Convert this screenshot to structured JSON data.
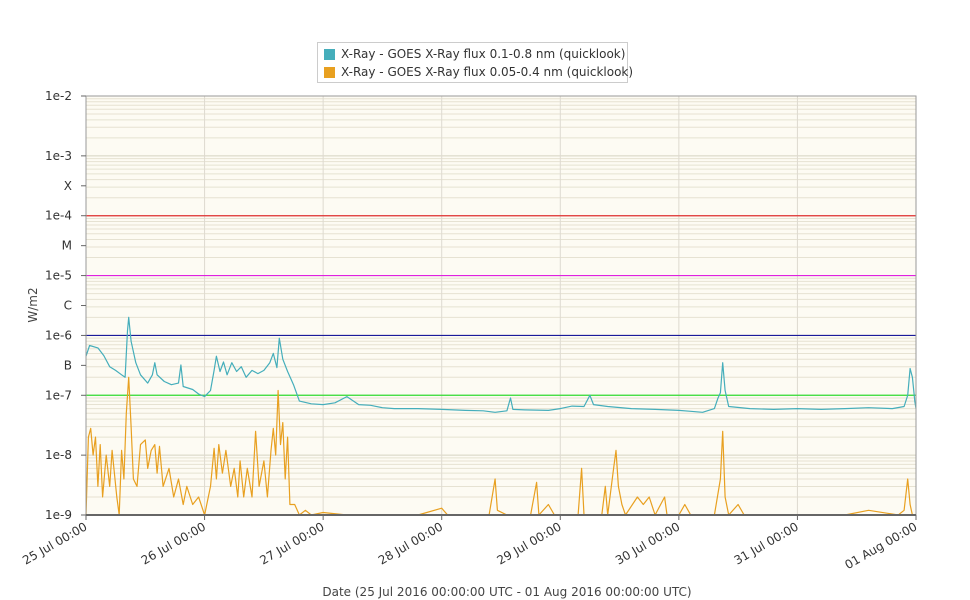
{
  "chart_data": {
    "type": "line",
    "title": "",
    "ylabel": "W/m2",
    "xlabel": "Date (25 Jul 2016 00:00:00 UTC - 01 Aug 2016 00:00:00 UTC)",
    "y_scale": "log",
    "ylim": [
      1e-09,
      0.01
    ],
    "xlim": [
      "2016-07-25T00:00",
      "2016-08-01T00:00"
    ],
    "grid": true,
    "legend_position": "top-center",
    "x_tick_labels": [
      "25 Jul 00:00",
      "26 Jul 00:00",
      "27 Jul 00:00",
      "28 Jul 00:00",
      "29 Jul 00:00",
      "30 Jul 00:00",
      "31 Jul 00:00",
      "01 Aug 00:00"
    ],
    "y_tick_labels": [
      {
        "text": "1e-2",
        "value": 0.01
      },
      {
        "text": "1e-3",
        "value": 0.001
      },
      {
        "text": "X",
        "value": 0.000316
      },
      {
        "text": "1e-4",
        "value": 0.0001
      },
      {
        "text": "M",
        "value": 3.16e-05
      },
      {
        "text": "1e-5",
        "value": 1e-05
      },
      {
        "text": "C",
        "value": 3.16e-06
      },
      {
        "text": "1e-6",
        "value": 1e-06
      },
      {
        "text": "B",
        "value": 3.16e-07
      },
      {
        "text": "1e-7",
        "value": 1e-07
      },
      {
        "text": "1e-8",
        "value": 1e-08
      },
      {
        "text": "1e-9",
        "value": 1e-09
      }
    ],
    "reference_lines": [
      {
        "value": 0.0001,
        "color": "#e03030"
      },
      {
        "value": 1e-05,
        "color": "#e020e0"
      },
      {
        "value": 1e-06,
        "color": "#1a1a9a"
      },
      {
        "value": 1e-07,
        "color": "#33dd33"
      }
    ],
    "series": [
      {
        "name": "X-Ray - GOES X-Ray flux 0.1-0.8 nm (quicklook)",
        "color": "#45aebb",
        "points": [
          [
            0.0,
            4.5e-07
          ],
          [
            0.03,
            6.8e-07
          ],
          [
            0.1,
            6.2e-07
          ],
          [
            0.15,
            4.6e-07
          ],
          [
            0.2,
            3e-07
          ],
          [
            0.25,
            2.6e-07
          ],
          [
            0.3,
            2.2e-07
          ],
          [
            0.33,
            2e-07
          ],
          [
            0.35,
            1.2e-06
          ],
          [
            0.36,
            2e-06
          ],
          [
            0.38,
            8e-07
          ],
          [
            0.42,
            3.5e-07
          ],
          [
            0.46,
            2.2e-07
          ],
          [
            0.52,
            1.6e-07
          ],
          [
            0.56,
            2.2e-07
          ],
          [
            0.58,
            3.5e-07
          ],
          [
            0.6,
            2.2e-07
          ],
          [
            0.66,
            1.7e-07
          ],
          [
            0.72,
            1.5e-07
          ],
          [
            0.78,
            1.6e-07
          ],
          [
            0.8,
            3.2e-07
          ],
          [
            0.82,
            1.4e-07
          ],
          [
            0.9,
            1.25e-07
          ],
          [
            0.95,
            1.05e-07
          ],
          [
            1.0,
            9.5e-08
          ],
          [
            1.05,
            1.2e-07
          ],
          [
            1.08,
            2.6e-07
          ],
          [
            1.1,
            4.5e-07
          ],
          [
            1.13,
            2.5e-07
          ],
          [
            1.16,
            3.6e-07
          ],
          [
            1.19,
            2.2e-07
          ],
          [
            1.23,
            3.5e-07
          ],
          [
            1.27,
            2.5e-07
          ],
          [
            1.31,
            3e-07
          ],
          [
            1.35,
            2e-07
          ],
          [
            1.4,
            2.6e-07
          ],
          [
            1.45,
            2.3e-07
          ],
          [
            1.5,
            2.6e-07
          ],
          [
            1.55,
            3.5e-07
          ],
          [
            1.58,
            5e-07
          ],
          [
            1.61,
            2.9e-07
          ],
          [
            1.63,
            9e-07
          ],
          [
            1.66,
            4e-07
          ],
          [
            1.7,
            2.5e-07
          ],
          [
            1.75,
            1.5e-07
          ],
          [
            1.8,
            8e-08
          ],
          [
            1.9,
            7.2e-08
          ],
          [
            2.0,
            7e-08
          ],
          [
            2.1,
            7.5e-08
          ],
          [
            2.2,
            9.5e-08
          ],
          [
            2.3,
            7e-08
          ],
          [
            2.4,
            6.8e-08
          ],
          [
            2.5,
            6.2e-08
          ],
          [
            2.6,
            6e-08
          ],
          [
            2.8,
            6e-08
          ],
          [
            3.0,
            5.8e-08
          ],
          [
            3.2,
            5.6e-08
          ],
          [
            3.35,
            5.5e-08
          ],
          [
            3.45,
            5.2e-08
          ],
          [
            3.55,
            5.5e-08
          ],
          [
            3.58,
            9e-08
          ],
          [
            3.6,
            5.8e-08
          ],
          [
            3.7,
            5.7e-08
          ],
          [
            3.9,
            5.6e-08
          ],
          [
            4.0,
            6e-08
          ],
          [
            4.1,
            6.6e-08
          ],
          [
            4.2,
            6.5e-08
          ],
          [
            4.25,
            1e-07
          ],
          [
            4.28,
            7e-08
          ],
          [
            4.4,
            6.5e-08
          ],
          [
            4.6,
            6e-08
          ],
          [
            4.8,
            5.8e-08
          ],
          [
            5.0,
            5.6e-08
          ],
          [
            5.1,
            5.4e-08
          ],
          [
            5.2,
            5.2e-08
          ],
          [
            5.3,
            6e-08
          ],
          [
            5.33,
            9e-08
          ],
          [
            5.35,
            1.1e-07
          ],
          [
            5.37,
            3.5e-07
          ],
          [
            5.39,
            1.2e-07
          ],
          [
            5.42,
            6.5e-08
          ],
          [
            5.6,
            6e-08
          ],
          [
            5.8,
            5.8e-08
          ],
          [
            6.0,
            6e-08
          ],
          [
            6.2,
            5.8e-08
          ],
          [
            6.4,
            6e-08
          ],
          [
            6.6,
            6.2e-08
          ],
          [
            6.8,
            6e-08
          ],
          [
            6.9,
            6.5e-08
          ],
          [
            6.93,
            1e-07
          ],
          [
            6.95,
            2.8e-07
          ],
          [
            6.97,
            2e-07
          ],
          [
            6.99,
            8e-08
          ],
          [
            7.0,
            6e-08
          ]
        ]
      },
      {
        "name": "X-Ray - GOES X-Ray flux 0.05-0.4 nm (quicklook)",
        "color": "#e8a020",
        "points": [
          [
            0.0,
            1e-09
          ],
          [
            0.02,
            2e-08
          ],
          [
            0.04,
            2.8e-08
          ],
          [
            0.06,
            1e-08
          ],
          [
            0.08,
            2e-08
          ],
          [
            0.1,
            3e-09
          ],
          [
            0.12,
            1.5e-08
          ],
          [
            0.14,
            2e-09
          ],
          [
            0.17,
            1e-08
          ],
          [
            0.2,
            3e-09
          ],
          [
            0.22,
            1.2e-08
          ],
          [
            0.26,
            2e-09
          ],
          [
            0.28,
            1e-09
          ],
          [
            0.3,
            1.2e-08
          ],
          [
            0.32,
            4e-09
          ],
          [
            0.34,
            5e-08
          ],
          [
            0.36,
            2e-07
          ],
          [
            0.38,
            3e-08
          ],
          [
            0.4,
            4e-09
          ],
          [
            0.43,
            3e-09
          ],
          [
            0.46,
            1.5e-08
          ],
          [
            0.5,
            1.8e-08
          ],
          [
            0.52,
            6e-09
          ],
          [
            0.55,
            1.2e-08
          ],
          [
            0.58,
            1.5e-08
          ],
          [
            0.6,
            5e-09
          ],
          [
            0.62,
            1.4e-08
          ],
          [
            0.65,
            3e-09
          ],
          [
            0.7,
            6e-09
          ],
          [
            0.74,
            2e-09
          ],
          [
            0.78,
            4e-09
          ],
          [
            0.82,
            1.5e-09
          ],
          [
            0.85,
            3e-09
          ],
          [
            0.9,
            1.5e-09
          ],
          [
            0.95,
            2e-09
          ],
          [
            1.0,
            1e-09
          ],
          [
            1.05,
            3e-09
          ],
          [
            1.08,
            1.3e-08
          ],
          [
            1.1,
            4e-09
          ],
          [
            1.12,
            1.5e-08
          ],
          [
            1.15,
            5e-09
          ],
          [
            1.18,
            1.2e-08
          ],
          [
            1.22,
            3e-09
          ],
          [
            1.25,
            6e-09
          ],
          [
            1.28,
            2e-09
          ],
          [
            1.3,
            8e-09
          ],
          [
            1.33,
            2e-09
          ],
          [
            1.36,
            6e-09
          ],
          [
            1.4,
            2e-09
          ],
          [
            1.43,
            2.5e-08
          ],
          [
            1.46,
            3e-09
          ],
          [
            1.5,
            8e-09
          ],
          [
            1.53,
            2e-09
          ],
          [
            1.56,
            1.2e-08
          ],
          [
            1.58,
            2.8e-08
          ],
          [
            1.6,
            1e-08
          ],
          [
            1.62,
            1.2e-07
          ],
          [
            1.64,
            1.5e-08
          ],
          [
            1.66,
            3.5e-08
          ],
          [
            1.68,
            4e-09
          ],
          [
            1.7,
            2e-08
          ],
          [
            1.72,
            1.5e-09
          ],
          [
            1.76,
            1.5e-09
          ],
          [
            1.8,
            1e-09
          ],
          [
            1.85,
            1.2e-09
          ],
          [
            1.9,
            1e-09
          ],
          [
            2.0,
            1.1e-09
          ],
          [
            2.2,
            1e-09
          ],
          [
            2.5,
            1e-09
          ],
          [
            2.8,
            1e-09
          ],
          [
            3.0,
            1.3e-09
          ],
          [
            3.05,
            1e-09
          ],
          [
            3.4,
            1e-09
          ],
          [
            3.45,
            4e-09
          ],
          [
            3.47,
            1.2e-09
          ],
          [
            3.55,
            1e-09
          ],
          [
            3.75,
            1e-09
          ],
          [
            3.8,
            3.5e-09
          ],
          [
            3.82,
            1e-09
          ],
          [
            3.9,
            1.5e-09
          ],
          [
            3.95,
            1e-09
          ],
          [
            4.15,
            1e-09
          ],
          [
            4.18,
            6e-09
          ],
          [
            4.2,
            1e-09
          ],
          [
            4.35,
            1e-09
          ],
          [
            4.38,
            3e-09
          ],
          [
            4.4,
            1e-09
          ],
          [
            4.45,
            6e-09
          ],
          [
            4.47,
            1.2e-08
          ],
          [
            4.49,
            3e-09
          ],
          [
            4.52,
            1.5e-09
          ],
          [
            4.55,
            1e-09
          ],
          [
            4.65,
            2e-09
          ],
          [
            4.7,
            1.5e-09
          ],
          [
            4.75,
            2e-09
          ],
          [
            4.8,
            1e-09
          ],
          [
            4.88,
            2e-09
          ],
          [
            4.9,
            1e-09
          ],
          [
            5.0,
            1e-09
          ],
          [
            5.05,
            1.5e-09
          ],
          [
            5.1,
            1e-09
          ],
          [
            5.3,
            1e-09
          ],
          [
            5.35,
            4e-09
          ],
          [
            5.37,
            2.5e-08
          ],
          [
            5.39,
            2e-09
          ],
          [
            5.42,
            1e-09
          ],
          [
            5.5,
            1.5e-09
          ],
          [
            5.55,
            1e-09
          ],
          [
            6.0,
            1e-09
          ],
          [
            6.2,
            1e-09
          ],
          [
            6.4,
            1e-09
          ],
          [
            6.6,
            1.2e-09
          ],
          [
            6.85,
            1e-09
          ],
          [
            6.9,
            1.2e-09
          ],
          [
            6.93,
            4e-09
          ],
          [
            6.95,
            1.5e-09
          ],
          [
            6.97,
            1e-09
          ],
          [
            7.0,
            1e-09
          ]
        ]
      }
    ]
  }
}
